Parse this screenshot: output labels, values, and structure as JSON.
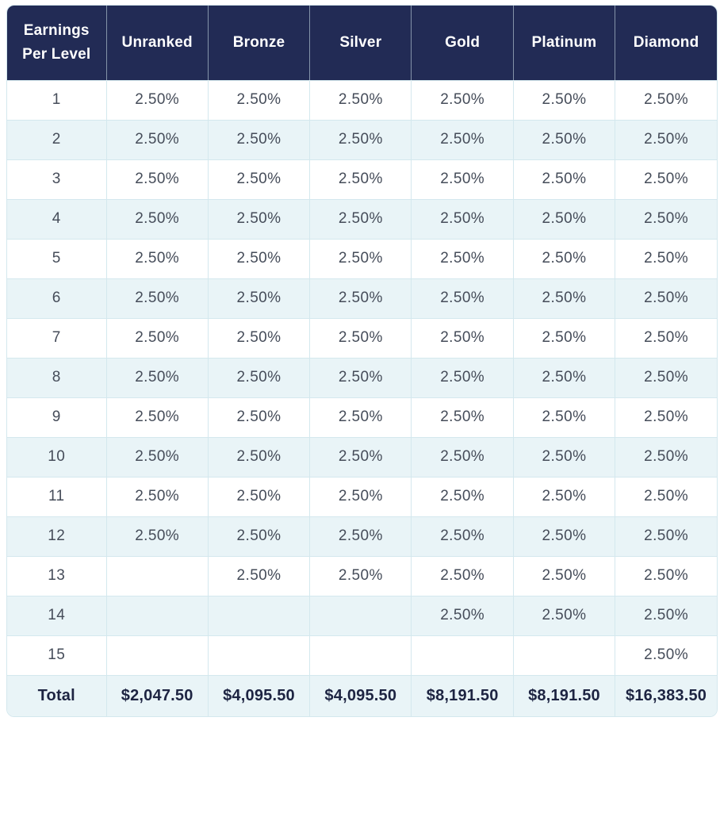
{
  "chart_data": {
    "type": "table",
    "title": "Earnings Per Level",
    "header": [
      "Earnings Per Level",
      "Unranked",
      "Bronze",
      "Silver",
      "Gold",
      "Platinum",
      "Diamond"
    ],
    "per_level_rate": "2.50%",
    "level_rows": [
      {
        "level": "1",
        "values": [
          "2.50%",
          "2.50%",
          "2.50%",
          "2.50%",
          "2.50%",
          "2.50%"
        ]
      },
      {
        "level": "2",
        "values": [
          "2.50%",
          "2.50%",
          "2.50%",
          "2.50%",
          "2.50%",
          "2.50%"
        ]
      },
      {
        "level": "3",
        "values": [
          "2.50%",
          "2.50%",
          "2.50%",
          "2.50%",
          "2.50%",
          "2.50%"
        ]
      },
      {
        "level": "4",
        "values": [
          "2.50%",
          "2.50%",
          "2.50%",
          "2.50%",
          "2.50%",
          "2.50%"
        ]
      },
      {
        "level": "5",
        "values": [
          "2.50%",
          "2.50%",
          "2.50%",
          "2.50%",
          "2.50%",
          "2.50%"
        ]
      },
      {
        "level": "6",
        "values": [
          "2.50%",
          "2.50%",
          "2.50%",
          "2.50%",
          "2.50%",
          "2.50%"
        ]
      },
      {
        "level": "7",
        "values": [
          "2.50%",
          "2.50%",
          "2.50%",
          "2.50%",
          "2.50%",
          "2.50%"
        ]
      },
      {
        "level": "8",
        "values": [
          "2.50%",
          "2.50%",
          "2.50%",
          "2.50%",
          "2.50%",
          "2.50%"
        ]
      },
      {
        "level": "9",
        "values": [
          "2.50%",
          "2.50%",
          "2.50%",
          "2.50%",
          "2.50%",
          "2.50%"
        ]
      },
      {
        "level": "10",
        "values": [
          "2.50%",
          "2.50%",
          "2.50%",
          "2.50%",
          "2.50%",
          "2.50%"
        ]
      },
      {
        "level": "11",
        "values": [
          "2.50%",
          "2.50%",
          "2.50%",
          "2.50%",
          "2.50%",
          "2.50%"
        ]
      },
      {
        "level": "12",
        "values": [
          "2.50%",
          "2.50%",
          "2.50%",
          "2.50%",
          "2.50%",
          "2.50%"
        ]
      },
      {
        "level": "13",
        "values": [
          "",
          "2.50%",
          "2.50%",
          "2.50%",
          "2.50%",
          "2.50%"
        ]
      },
      {
        "level": "14",
        "values": [
          "",
          "",
          "",
          "2.50%",
          "2.50%",
          "2.50%"
        ]
      },
      {
        "level": "15",
        "values": [
          "",
          "",
          "",
          "",
          "",
          "2.50%"
        ]
      }
    ],
    "total_row": {
      "label": "Total",
      "values": [
        "$2,047.50",
        "$4,095.50",
        "$4,095.50",
        "$8,191.50",
        "$8,191.50",
        "$16,383.50"
      ]
    }
  },
  "colors": {
    "header_bg": "#222b55",
    "header_text": "#ffffff",
    "stripe_bg": "#e9f4f7",
    "row_bg": "#ffffff",
    "border": "#d4e8ee",
    "cell_text": "#454c59",
    "total_text": "#1d2442"
  }
}
